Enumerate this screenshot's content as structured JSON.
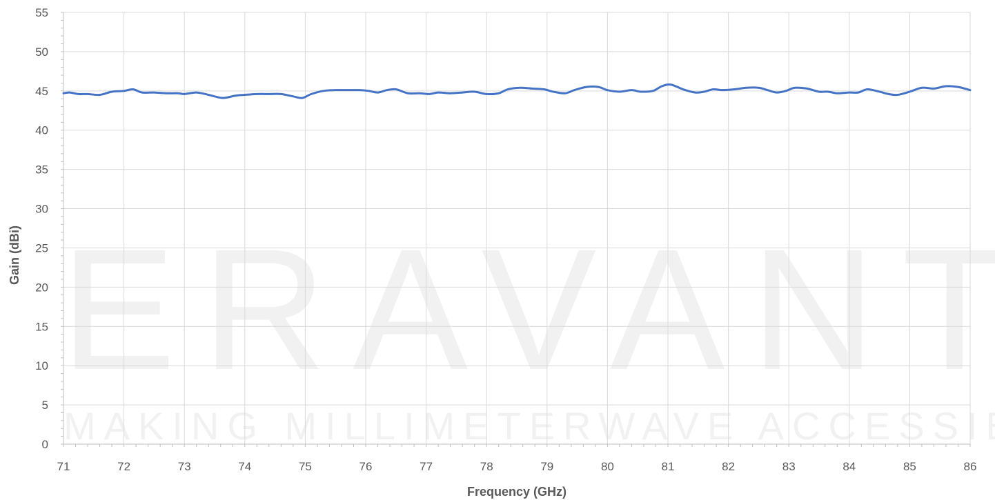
{
  "chart_data": {
    "type": "line",
    "title": "",
    "xlabel": "Frequency (GHz)",
    "ylabel": "Gain (dBi)",
    "xlim": [
      71,
      86
    ],
    "ylim": [
      0,
      55
    ],
    "xticks": [
      71,
      72,
      73,
      74,
      75,
      76,
      77,
      78,
      79,
      80,
      81,
      82,
      83,
      84,
      85,
      86
    ],
    "yticks": [
      0,
      5,
      10,
      15,
      20,
      25,
      30,
      35,
      40,
      45,
      50,
      55
    ],
    "grid": true,
    "legend": "none",
    "line_color": "#4472c4",
    "watermark": {
      "brand": "ERAVANT",
      "tagline": "MAKING MILLIMETERWAVE ACCESSIBLE"
    },
    "series": [
      {
        "x": [
          71.0,
          71.1,
          71.25,
          71.4,
          71.6,
          71.8,
          72.0,
          72.15,
          72.3,
          72.5,
          72.7,
          72.9,
          73.0,
          73.2,
          73.4,
          73.5,
          73.65,
          73.85,
          74.0,
          74.2,
          74.4,
          74.6,
          74.8,
          74.95,
          75.1,
          75.3,
          75.5,
          75.7,
          75.9,
          76.05,
          76.2,
          76.35,
          76.5,
          76.7,
          76.9,
          77.05,
          77.2,
          77.4,
          77.6,
          77.8,
          78.0,
          78.2,
          78.35,
          78.55,
          78.75,
          78.95,
          79.1,
          79.3,
          79.45,
          79.65,
          79.85,
          80.0,
          80.2,
          80.4,
          80.55,
          80.75,
          80.9,
          81.05,
          81.25,
          81.45,
          81.6,
          81.75,
          81.9,
          82.1,
          82.3,
          82.5,
          82.65,
          82.8,
          82.95,
          83.1,
          83.3,
          83.5,
          83.65,
          83.8,
          84.0,
          84.15,
          84.3,
          84.5,
          84.65,
          84.8,
          85.0,
          85.2,
          85.4,
          85.6,
          85.8,
          86.0
        ],
        "y": [
          44.7,
          44.8,
          44.6,
          44.6,
          44.5,
          44.9,
          45.0,
          45.2,
          44.8,
          44.8,
          44.7,
          44.7,
          44.6,
          44.8,
          44.5,
          44.3,
          44.1,
          44.4,
          44.5,
          44.6,
          44.6,
          44.6,
          44.3,
          44.1,
          44.6,
          45.0,
          45.1,
          45.1,
          45.1,
          45.0,
          44.8,
          45.1,
          45.2,
          44.7,
          44.7,
          44.6,
          44.8,
          44.7,
          44.8,
          44.9,
          44.6,
          44.7,
          45.2,
          45.4,
          45.3,
          45.2,
          44.9,
          44.7,
          45.1,
          45.5,
          45.5,
          45.1,
          44.9,
          45.1,
          44.9,
          45.0,
          45.6,
          45.8,
          45.2,
          44.8,
          44.9,
          45.2,
          45.1,
          45.2,
          45.4,
          45.4,
          45.1,
          44.8,
          45.0,
          45.4,
          45.3,
          44.9,
          44.9,
          44.7,
          44.8,
          44.8,
          45.2,
          44.9,
          44.6,
          44.5,
          44.9,
          45.4,
          45.3,
          45.6,
          45.5,
          45.1
        ]
      }
    ]
  }
}
